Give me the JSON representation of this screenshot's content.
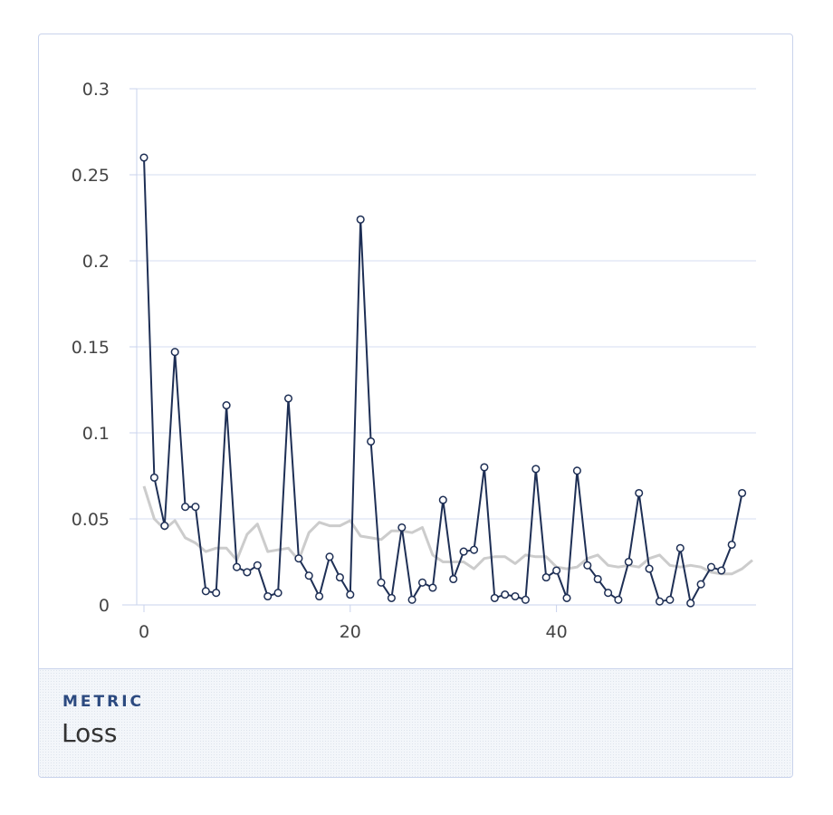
{
  "chart_data": {
    "type": "line",
    "x_ticks": [
      0,
      20,
      40
    ],
    "y_ticks": [
      0,
      0.05,
      0.1,
      0.15,
      0.2,
      0.25,
      0.3
    ],
    "y_tick_labels": [
      "0",
      "0.05",
      "0.1",
      "0.15",
      "0.2",
      "0.25",
      "0.3"
    ],
    "xlim": [
      0,
      59
    ],
    "ylim": [
      0,
      0.3
    ],
    "grid": true,
    "series": [
      {
        "role": "raw",
        "color": "#1e2f55",
        "markers": true,
        "x": [
          0,
          1,
          2,
          3,
          4,
          5,
          6,
          7,
          8,
          9,
          10,
          11,
          12,
          13,
          14,
          15,
          16,
          17,
          18,
          19,
          20,
          21,
          22,
          23,
          24,
          25,
          26,
          27,
          28,
          29,
          30,
          31,
          32,
          33,
          34,
          35,
          36,
          37,
          38,
          39,
          40,
          41,
          42,
          43,
          44,
          45,
          46,
          47,
          48,
          49,
          50,
          51,
          52,
          53,
          54,
          55,
          56,
          57,
          58
        ],
        "values": [
          0.26,
          0.074,
          0.046,
          0.147,
          0.057,
          0.057,
          0.008,
          0.007,
          0.116,
          0.022,
          0.019,
          0.023,
          0.005,
          0.007,
          0.12,
          0.027,
          0.017,
          0.005,
          0.028,
          0.016,
          0.006,
          0.224,
          0.095,
          0.013,
          0.004,
          0.045,
          0.003,
          0.013,
          0.01,
          0.061,
          0.015,
          0.031,
          0.032,
          0.08,
          0.004,
          0.006,
          0.005,
          0.003,
          0.079,
          0.016,
          0.02,
          0.004,
          0.078,
          0.023,
          0.015,
          0.007,
          0.003,
          0.025,
          0.065,
          0.021,
          0.002,
          0.003,
          0.033,
          0.001,
          0.012,
          0.022,
          0.02,
          0.035,
          0.065
        ]
      },
      {
        "role": "smoothed",
        "color": "#cccccc",
        "markers": false,
        "x": [
          0,
          1,
          2,
          3,
          4,
          5,
          6,
          7,
          8,
          9,
          10,
          11,
          12,
          13,
          14,
          15,
          16,
          17,
          18,
          19,
          20,
          21,
          22,
          23,
          24,
          25,
          26,
          27,
          28,
          29,
          30,
          31,
          32,
          33,
          34,
          35,
          36,
          37,
          38,
          39,
          40,
          41,
          42,
          43,
          44,
          45,
          46,
          47,
          48,
          49,
          50,
          51,
          52,
          53,
          54,
          55,
          56,
          57,
          58,
          59
        ],
        "values": [
          0.069,
          0.05,
          0.044,
          0.049,
          0.039,
          0.036,
          0.031,
          0.033,
          0.033,
          0.026,
          0.041,
          0.047,
          0.031,
          0.032,
          0.033,
          0.026,
          0.042,
          0.048,
          0.046,
          0.046,
          0.049,
          0.04,
          0.039,
          0.038,
          0.043,
          0.043,
          0.042,
          0.045,
          0.029,
          0.025,
          0.025,
          0.025,
          0.021,
          0.027,
          0.028,
          0.028,
          0.024,
          0.029,
          0.028,
          0.028,
          0.022,
          0.021,
          0.022,
          0.027,
          0.029,
          0.023,
          0.022,
          0.023,
          0.022,
          0.027,
          0.029,
          0.023,
          0.022,
          0.023,
          0.022,
          0.019,
          0.018,
          0.018,
          0.021,
          0.026
        ]
      }
    ]
  },
  "footer": {
    "label": "METRIC",
    "value": "Loss"
  }
}
